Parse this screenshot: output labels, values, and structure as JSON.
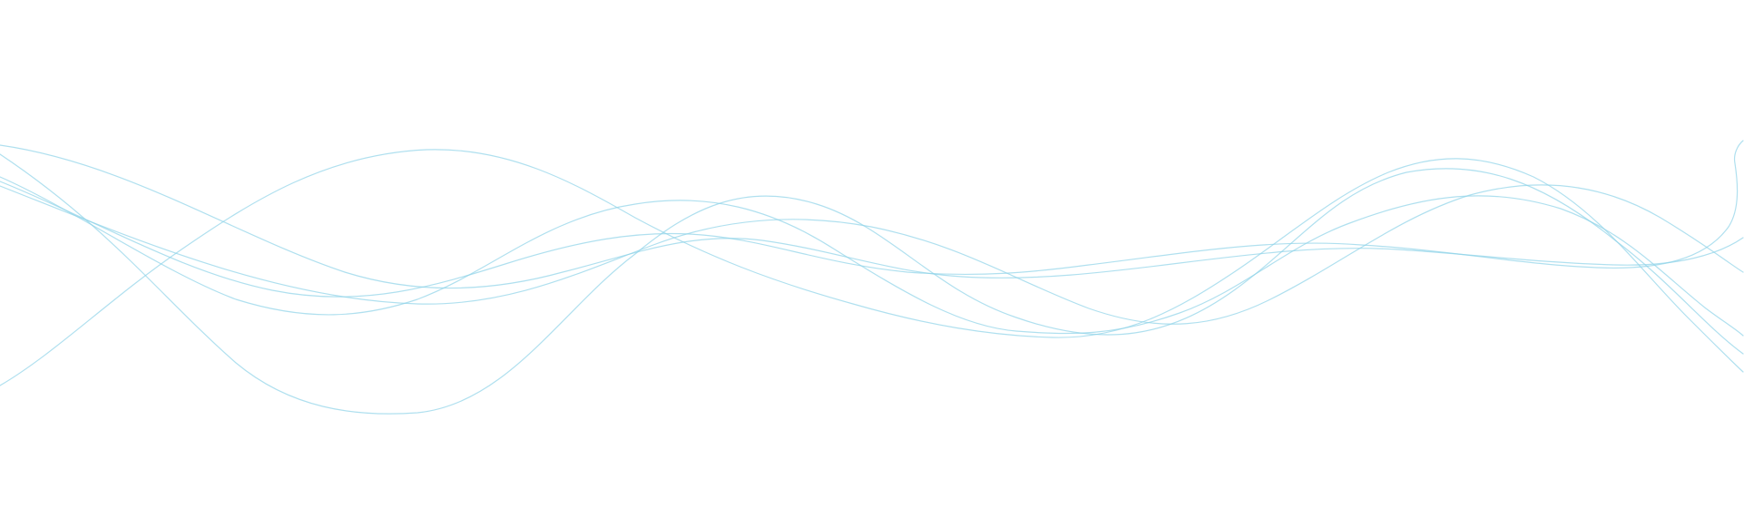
{
  "background_color": "#ffffff",
  "wave_color": "#8fd3e8",
  "wave_opacity": 0.7,
  "waves": [
    {
      "name": "wave-1"
    },
    {
      "name": "wave-2"
    },
    {
      "name": "wave-3"
    },
    {
      "name": "wave-4"
    },
    {
      "name": "wave-5"
    },
    {
      "name": "wave-6"
    }
  ]
}
